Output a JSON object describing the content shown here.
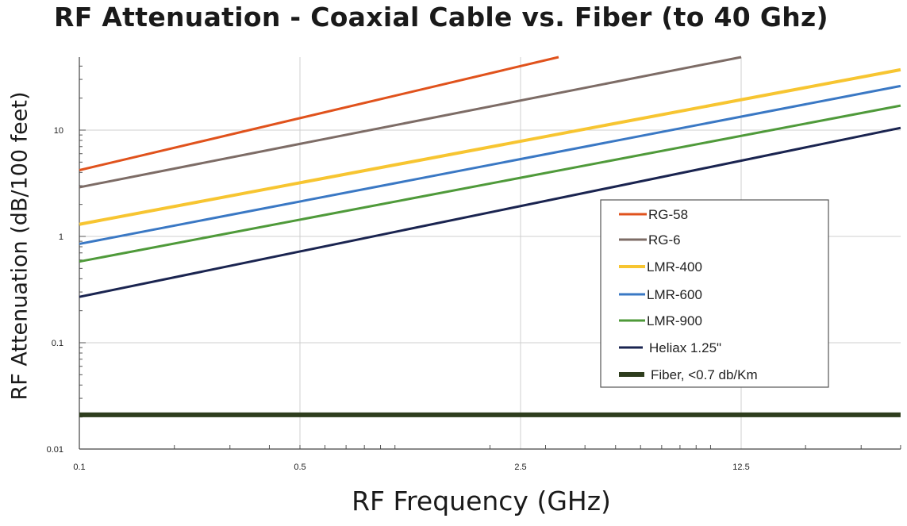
{
  "chart_data": {
    "type": "line",
    "title": "RF Attenuation - Coaxial Cable vs. Fiber (to 40 Ghz)",
    "xlabel": "RF Frequency (GHz)",
    "ylabel": "RF Attenuation (dB/100 feet)",
    "xscale": "log",
    "yscale": "log",
    "xlim": [
      0.1,
      40
    ],
    "ylim": [
      0.01,
      60
    ],
    "x_ticks": [
      0.1,
      0.5,
      2.5,
      12.5
    ],
    "x_tick_labels": [
      "0.1",
      "0.5",
      "2.5",
      "12.5"
    ],
    "y_ticks": [
      0.01,
      0.1,
      1,
      10
    ],
    "y_tick_labels": [
      "0.01",
      "0.1",
      "1",
      "10"
    ],
    "legend_position": "center-right",
    "series": [
      {
        "name": "RG-58",
        "color": "#e0521c",
        "x": [
          0.1,
          3.3
        ],
        "y": [
          4.2,
          52
        ]
      },
      {
        "name": "RG-6",
        "color": "#7d6c66",
        "x": [
          0.1,
          12.5
        ],
        "y": [
          2.9,
          52
        ]
      },
      {
        "name": "LMR-400",
        "color": "#f7c531",
        "x": [
          0.1,
          40
        ],
        "y": [
          1.3,
          37
        ]
      },
      {
        "name": "LMR-600",
        "color": "#3a78c4",
        "x": [
          0.1,
          40
        ],
        "y": [
          0.85,
          26
        ]
      },
      {
        "name": "LMR-900",
        "color": "#4f9a3a",
        "x": [
          0.1,
          40
        ],
        "y": [
          0.58,
          17
        ]
      },
      {
        "name": "Heliax 1.25\"",
        "color": "#1a2450",
        "x": [
          0.1,
          40
        ],
        "y": [
          0.27,
          10.5
        ]
      },
      {
        "name": "Fiber, <0.7 db/Km",
        "color": "#2e3d1d",
        "x": [
          0.1,
          40
        ],
        "y": [
          0.021,
          0.021
        ]
      }
    ]
  }
}
